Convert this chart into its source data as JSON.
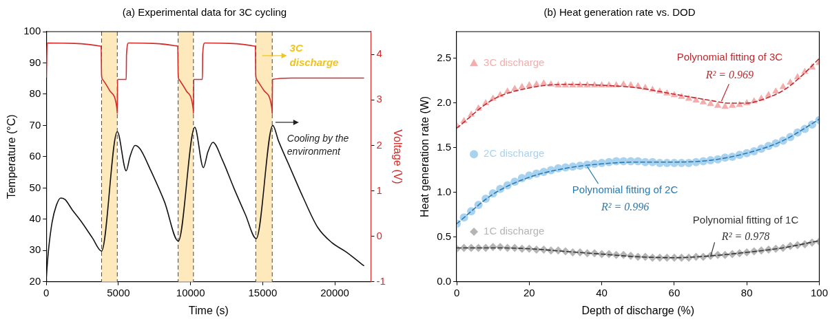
{
  "chart_data": [
    {
      "type": "line",
      "title": "(a) Experimental data for 3C cycling",
      "xlabel": "Time (s)",
      "ylabel": "Temperature (°C)",
      "y2label": "Voltage (V)",
      "xlim": [
        0,
        22500
      ],
      "xticks": [
        0,
        5000,
        10000,
        15000,
        20000
      ],
      "ylim": [
        20,
        100
      ],
      "yticks": [
        20,
        30,
        40,
        50,
        60,
        70,
        80,
        90,
        100
      ],
      "y2lim": [
        -1,
        4.5
      ],
      "y2ticks": [
        -1,
        0,
        1,
        2,
        3,
        4
      ],
      "grid": false,
      "legend": false,
      "bands": [
        {
          "axis": "x",
          "from": 3830,
          "to": 4920,
          "color": "#fde9bb"
        },
        {
          "axis": "x",
          "from": 9140,
          "to": 10200,
          "color": "#fde9bb"
        },
        {
          "axis": "x",
          "from": 14520,
          "to": 15660,
          "color": "#fde9bb"
        }
      ],
      "ref_lines": [
        {
          "axis": "x",
          "value": 3830,
          "color": "#444444",
          "line_style": "dashed"
        },
        {
          "axis": "x",
          "value": 4920,
          "color": "#444444",
          "line_style": "dashed"
        },
        {
          "axis": "x",
          "value": 9140,
          "color": "#444444",
          "line_style": "dashed"
        },
        {
          "axis": "x",
          "value": 10200,
          "color": "#444444",
          "line_style": "dashed"
        },
        {
          "axis": "x",
          "value": 14520,
          "color": "#444444",
          "line_style": "dashed"
        },
        {
          "axis": "x",
          "value": 15660,
          "color": "#444444",
          "line_style": "dashed"
        }
      ],
      "series": [
        {
          "color": "#111111",
          "marker": "none",
          "line_style": "solid",
          "x": [
            0,
            150,
            400,
            700,
            1000,
            1300,
            1800,
            2400,
            3200,
            3830,
            4920,
            5540,
            5800,
            6150,
            6500,
            7200,
            8200,
            9150,
            10290,
            10890,
            11200,
            11550,
            12200,
            13000,
            13800,
            14550,
            15700,
            16100,
            16900,
            17800,
            18800,
            19800,
            20800,
            22000
          ],
          "values": [
            21.5,
            30,
            39,
            44.5,
            46.8,
            46.3,
            43,
            39.4,
            34,
            29.8,
            68,
            55.5,
            60,
            63.6,
            62.5,
            56,
            45.5,
            33,
            69.4,
            56.5,
            61.5,
            64.6,
            59,
            50,
            41.5,
            33.8,
            70,
            65,
            56.5,
            47,
            37.5,
            32.5,
            29.5,
            25.2
          ]
        },
        {
          "color": "#d42a2a",
          "marker": "none",
          "line_style": "solid",
          "axis": "y2",
          "x": [
            0,
            60,
            3800,
            3830,
            3900,
            4400,
            4900,
            4920,
            4940,
            5540,
            5560,
            5700,
            9110,
            9140,
            9200,
            9700,
            10180,
            10200,
            10220,
            10820,
            10840,
            10980,
            14490,
            14520,
            14580,
            15100,
            15640,
            15660,
            15680,
            17000,
            22000
          ],
          "values": [
            3.5,
            4.25,
            4.18,
            3.55,
            3.45,
            3.2,
            2.8,
            2.7,
            3.45,
            3.45,
            4.0,
            4.25,
            4.18,
            3.55,
            3.45,
            3.2,
            2.8,
            2.7,
            3.45,
            3.45,
            4.0,
            4.25,
            4.18,
            3.55,
            3.45,
            3.2,
            2.8,
            2.7,
            3.45,
            3.48,
            3.48
          ]
        }
      ],
      "annotations": [
        "3C\ndischarge",
        {
          "text": "Cooling by the\nenvironment",
          "x": 15880,
          "y": 71
        }
      ]
    },
    {
      "type": "scatter",
      "title": "(b) Heat generation rate vs. DOD",
      "xlabel": "Depth of discharge (%)",
      "ylabel": "Heat generation rate (W)",
      "xlim": [
        0,
        100
      ],
      "xticks": [
        0,
        20,
        40,
        60,
        80,
        100
      ],
      "ylim": [
        0,
        2.8
      ],
      "yticks": [
        {
          "value": 0,
          "label": "0.0"
        },
        0.5,
        {
          "value": 1,
          "label": "1.0"
        },
        1.5,
        {
          "value": 2,
          "label": "2.0"
        },
        2.5
      ],
      "grid": false,
      "legend": "left",
      "x": [
        0,
        2,
        4,
        6,
        8,
        10,
        12,
        14,
        16,
        18,
        20,
        22,
        24,
        26,
        28,
        30,
        32,
        34,
        36,
        38,
        40,
        42,
        44,
        46,
        48,
        50,
        52,
        54,
        56,
        58,
        60,
        62,
        64,
        66,
        68,
        70,
        72,
        74,
        76,
        78,
        80,
        82,
        84,
        86,
        88,
        90,
        92,
        94,
        96,
        98,
        100
      ],
      "series": [
        {
          "name": "3C discharge",
          "type": "scatter",
          "marker": "triangle",
          "color": "#f4adad",
          "values": [
            1.75,
            1.8,
            1.87,
            1.94,
            2.0,
            2.05,
            2.09,
            2.13,
            2.16,
            2.18,
            2.2,
            2.21,
            2.22,
            2.21,
            2.2,
            2.2,
            2.2,
            2.2,
            2.2,
            2.2,
            2.2,
            2.2,
            2.2,
            2.21,
            2.2,
            2.19,
            2.17,
            2.15,
            2.13,
            2.11,
            2.09,
            2.07,
            2.05,
            2.03,
            2.01,
            1.99,
            1.97,
            1.96,
            1.97,
            1.98,
            2.0,
            2.02,
            2.05,
            2.09,
            2.13,
            2.18,
            2.23,
            2.29,
            2.35,
            2.4,
            2.45
          ]
        },
        {
          "name": "2C discharge",
          "type": "scatter",
          "marker": "circle",
          "color": "#a8d3f0",
          "values": [
            0.65,
            0.72,
            0.79,
            0.86,
            0.93,
            0.99,
            1.04,
            1.08,
            1.12,
            1.16,
            1.19,
            1.21,
            1.23,
            1.25,
            1.27,
            1.28,
            1.29,
            1.3,
            1.31,
            1.32,
            1.33,
            1.34,
            1.35,
            1.35,
            1.35,
            1.35,
            1.34,
            1.34,
            1.33,
            1.33,
            1.33,
            1.33,
            1.33,
            1.34,
            1.35,
            1.36,
            1.37,
            1.39,
            1.4,
            1.42,
            1.44,
            1.46,
            1.49,
            1.52,
            1.55,
            1.58,
            1.62,
            1.67,
            1.71,
            1.76,
            1.81
          ]
        },
        {
          "name": "1C discharge",
          "type": "scatter",
          "marker": "diamond",
          "color": "#b5b5b5",
          "values": [
            0.37,
            0.38,
            0.38,
            0.38,
            0.38,
            0.39,
            0.39,
            0.38,
            0.38,
            0.37,
            0.37,
            0.36,
            0.36,
            0.35,
            0.35,
            0.34,
            0.33,
            0.33,
            0.32,
            0.32,
            0.31,
            0.31,
            0.3,
            0.3,
            0.29,
            0.28,
            0.28,
            0.27,
            0.27,
            0.27,
            0.27,
            0.27,
            0.27,
            0.28,
            0.28,
            0.29,
            0.3,
            0.3,
            0.31,
            0.32,
            0.33,
            0.34,
            0.35,
            0.36,
            0.37,
            0.38,
            0.4,
            0.41,
            0.42,
            0.44,
            0.45
          ]
        },
        {
          "type": "line",
          "marker": "none",
          "line_style": "dashed",
          "color": "#c0282d",
          "x": [
            0,
            10,
            20,
            30,
            40,
            50,
            60,
            70,
            75,
            80,
            85,
            90,
            95,
            100
          ],
          "values": [
            1.72,
            2.04,
            2.17,
            2.21,
            2.2,
            2.17,
            2.1,
            2.03,
            2.0,
            2.0,
            2.05,
            2.14,
            2.3,
            2.5
          ]
        },
        {
          "type": "line",
          "marker": "none",
          "line_style": "dashed",
          "color": "#2a7ab0",
          "x": [
            0,
            10,
            20,
            30,
            40,
            50,
            60,
            70,
            80,
            90,
            100
          ],
          "values": [
            0.65,
            0.98,
            1.17,
            1.27,
            1.32,
            1.34,
            1.34,
            1.36,
            1.44,
            1.58,
            1.82
          ]
        },
        {
          "type": "line",
          "marker": "none",
          "line_style": "dashed",
          "color": "#333333",
          "x": [
            0,
            10,
            20,
            30,
            40,
            50,
            60,
            70,
            80,
            90,
            100
          ],
          "values": [
            0.38,
            0.38,
            0.37,
            0.34,
            0.31,
            0.28,
            0.27,
            0.29,
            0.33,
            0.38,
            0.46
          ]
        }
      ],
      "annotations": [
        {
          "text": "Polynomial fitting of 3C\nR² = 0.969",
          "x": 73,
          "y": 2.02
        },
        {
          "text": "Polynomial fitting of 2C\nR² = 0.996",
          "x": 36,
          "y": 1.29
        },
        {
          "text": "Polynomial fitting of 1C\nR² = 0.978",
          "x": 70,
          "y": 0.28
        }
      ]
    }
  ]
}
